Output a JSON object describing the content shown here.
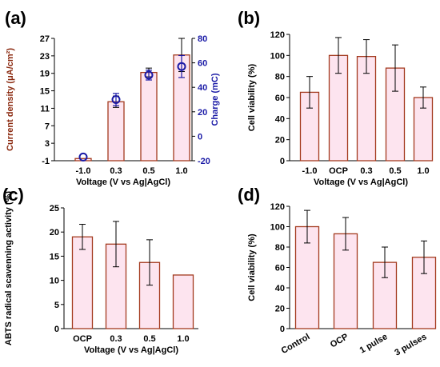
{
  "colors": {
    "bar_stroke": "#a33a1e",
    "bar_fill": "#fde4ef",
    "blue": "#1a1aa6",
    "axis": "#000000"
  },
  "chart_data": [
    {
      "panel": "(a)",
      "type": "bar",
      "categories": [
        "-1.0",
        "0.3",
        "0.5",
        "1.0"
      ],
      "series": [
        {
          "name": "Current density",
          "values": [
            -0.5,
            12.5,
            19.2,
            23.2
          ],
          "errors": [
            0,
            1.3,
            1.0,
            3.8
          ]
        }
      ],
      "overlay": {
        "type": "scatter",
        "values": [
          -17,
          30,
          50,
          57
        ],
        "errors": [
          0,
          5,
          4,
          9
        ]
      },
      "xlabel": "Voltage (V vs Ag|AgCl)",
      "ylabel": "Current density (μA/cm²)",
      "y2label": "Charge (mC)",
      "ylim": [
        -1,
        27
      ],
      "yticks": [
        "27",
        "23",
        "19",
        "15",
        "11",
        "7",
        "3",
        "-1"
      ],
      "y2lim": [
        -20,
        80
      ],
      "y2ticks": [
        "80",
        "60",
        "40",
        "20",
        "0",
        "-20"
      ]
    },
    {
      "panel": "(b)",
      "type": "bar",
      "categories": [
        "-1.0",
        "OCP",
        "0.3",
        "0.5",
        "1.0"
      ],
      "values": [
        65,
        100,
        99,
        88,
        60
      ],
      "errors": [
        15,
        17,
        16,
        22,
        10
      ],
      "xlabel": "Voltage (V vs Ag|AgCl)",
      "ylabel": "Cell viability (%)",
      "ylim": [
        0,
        120
      ],
      "yticks": [
        "120",
        "100",
        "80",
        "60",
        "40",
        "20",
        "0"
      ]
    },
    {
      "panel": "(c)",
      "type": "bar",
      "categories": [
        "OCP",
        "0.3",
        "0.5",
        "1.0"
      ],
      "values": [
        19,
        17.5,
        13.7,
        11.1
      ],
      "errors": [
        2.6,
        4.7,
        4.7,
        0
      ],
      "xlabel": "Voltage (V vs Ag|AgCl)",
      "ylabel": "ABTS radical scavenning activity (%)",
      "ylim": [
        0,
        25
      ],
      "yticks": [
        "25",
        "20",
        "15",
        "10",
        "5",
        "0"
      ]
    },
    {
      "panel": "(d)",
      "type": "bar",
      "categories": [
        "Control",
        "OCP",
        "1 pulse",
        "3 pulses"
      ],
      "values": [
        100,
        93,
        65,
        70
      ],
      "errors": [
        16,
        16,
        15,
        16
      ],
      "xlabel": "",
      "ylabel": "Cell viability (%)",
      "ylim": [
        0,
        120
      ],
      "yticks": [
        "120",
        "100",
        "80",
        "60",
        "40",
        "20",
        "0"
      ]
    }
  ]
}
